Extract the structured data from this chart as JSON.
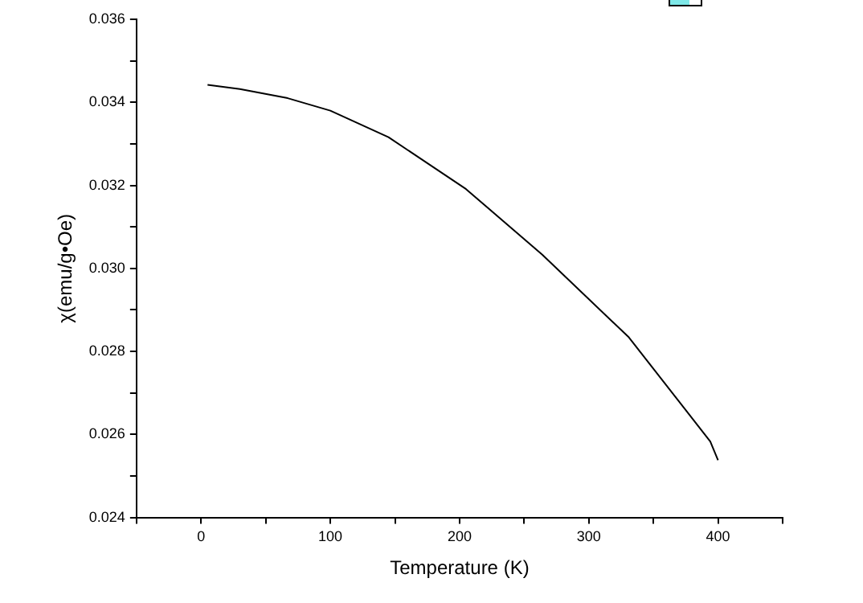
{
  "chart_data": {
    "type": "line",
    "xlabel": "Temperature (K)",
    "ylabel": "χ(emu/g•Oe)",
    "xlim": [
      -50,
      450
    ],
    "xticks": [
      {
        "value": -50,
        "label": null
      },
      {
        "value": 0,
        "label": "0"
      },
      {
        "value": 50,
        "label": null
      },
      {
        "value": 100,
        "label": "100"
      },
      {
        "value": 150,
        "label": null
      },
      {
        "value": 200,
        "label": "200"
      },
      {
        "value": 250,
        "label": null
      },
      {
        "value": 300,
        "label": "300"
      },
      {
        "value": 350,
        "label": null
      },
      {
        "value": 400,
        "label": "400"
      },
      {
        "value": 450,
        "label": null
      }
    ],
    "ylim": [
      0.024,
      0.036
    ],
    "yticks": [
      {
        "value": 0.024,
        "label": "0.024"
      },
      {
        "value": 0.025,
        "label": null
      },
      {
        "value": 0.026,
        "label": "0.026"
      },
      {
        "value": 0.027,
        "label": null
      },
      {
        "value": 0.028,
        "label": "0.028"
      },
      {
        "value": 0.029,
        "label": null
      },
      {
        "value": 0.03,
        "label": "0.030"
      },
      {
        "value": 0.031,
        "label": null
      },
      {
        "value": 0.032,
        "label": "0.032"
      },
      {
        "value": 0.033,
        "label": null
      },
      {
        "value": 0.034,
        "label": "0.034"
      },
      {
        "value": 0.035,
        "label": null
      },
      {
        "value": 0.036,
        "label": "0.036"
      }
    ],
    "x": [
      5,
      30,
      67,
      100,
      145,
      205,
      264,
      331,
      394,
      400
    ],
    "series": [
      {
        "color": "#000000",
        "values": [
          0.03442,
          0.03432,
          0.0341,
          0.0338,
          0.03316,
          0.03191,
          0.03033,
          0.02834,
          0.02583,
          0.02538
        ]
      }
    ],
    "grid": false,
    "legend": false,
    "marker": "none",
    "line_style": "solid"
  }
}
